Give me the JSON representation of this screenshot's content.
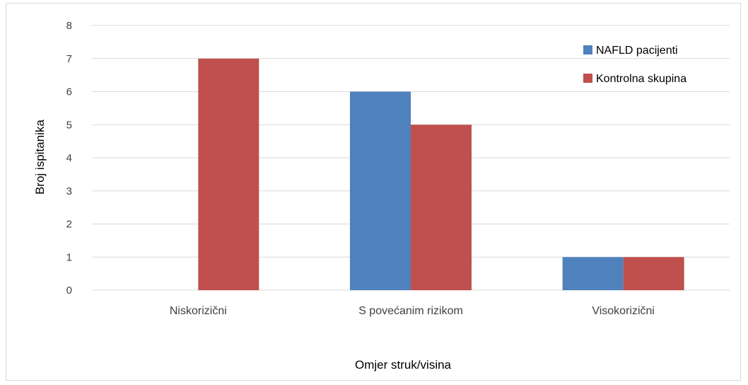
{
  "chart_data": {
    "type": "bar",
    "categories": [
      "Niskorizični",
      "S povećanim rizikom",
      "Visokorizični"
    ],
    "series": [
      {
        "name": "NAFLD pacijenti",
        "values": [
          0,
          6,
          1
        ],
        "color": "#4f81bd"
      },
      {
        "name": "Kontrolna skupina",
        "values": [
          7,
          5,
          1
        ],
        "color": "#c0504d"
      }
    ],
    "xlabel": "Omjer struk/visina",
    "ylabel": "Broj ispitanika",
    "ylim": [
      0,
      8
    ],
    "yticks": [
      "0",
      "1",
      "2",
      "3",
      "4",
      "5",
      "6",
      "7",
      "8"
    ],
    "grid": true,
    "legend_position": "top-right",
    "grid_color": "#d9d9d9"
  }
}
